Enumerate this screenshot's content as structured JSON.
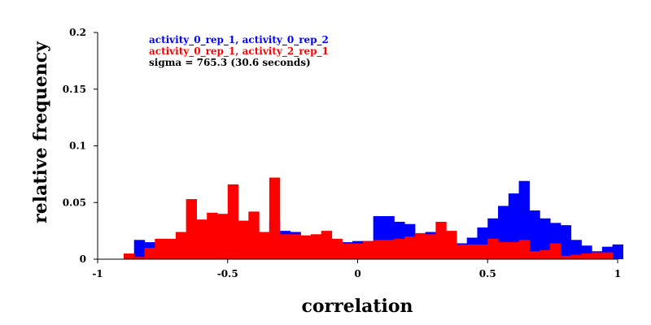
{
  "chart_data": {
    "type": "bar",
    "title": "",
    "xlabel": "correlation",
    "ylabel": "relative frequency",
    "xlim": [
      -1,
      1
    ],
    "ylim": [
      0,
      0.2
    ],
    "xticks": [
      {
        "value": -1,
        "label": "-1"
      },
      {
        "value": -0.5,
        "label": "-0.5"
      },
      {
        "value": 0,
        "label": "0"
      },
      {
        "value": 0.5,
        "label": "0.5"
      },
      {
        "value": 1,
        "label": "1"
      }
    ],
    "yticks": [
      {
        "value": 0,
        "label": "0"
      },
      {
        "value": 0.05,
        "label": "0.05"
      },
      {
        "value": 0.1,
        "label": "0.1"
      },
      {
        "value": 0.15,
        "label": "0.15"
      },
      {
        "value": 0.2,
        "label": "0.2"
      }
    ],
    "grid": false,
    "bin_width": 0.04,
    "annotation": "sigma = 765.3 (30.6 seconds)",
    "series": [
      {
        "name": "activity_0_rep_1, activity_0_rep_2",
        "color": "#0000ff",
        "bins": [
          {
            "x0": -0.86,
            "y": 0.017
          },
          {
            "x0": -0.82,
            "y": 0.015
          },
          {
            "x0": -0.78,
            "y": 0.012
          },
          {
            "x0": -0.74,
            "y": 0.01
          },
          {
            "x0": -0.7,
            "y": 0.008
          },
          {
            "x0": -0.66,
            "y": 0.013
          },
          {
            "x0": -0.62,
            "y": 0.012
          },
          {
            "x0": -0.58,
            "y": 0.013
          },
          {
            "x0": -0.54,
            "y": 0.011
          },
          {
            "x0": -0.5,
            "y": 0.012
          },
          {
            "x0": -0.46,
            "y": 0.01
          },
          {
            "x0": -0.42,
            "y": 0.012
          },
          {
            "x0": -0.38,
            "y": 0.019
          },
          {
            "x0": -0.34,
            "y": 0.034
          },
          {
            "x0": -0.3,
            "y": 0.025
          },
          {
            "x0": -0.26,
            "y": 0.024
          },
          {
            "x0": -0.22,
            "y": 0.018
          },
          {
            "x0": -0.18,
            "y": 0.017
          },
          {
            "x0": -0.14,
            "y": 0.017
          },
          {
            "x0": -0.1,
            "y": 0.015
          },
          {
            "x0": -0.06,
            "y": 0.015
          },
          {
            "x0": -0.02,
            "y": 0.016
          },
          {
            "x0": 0.02,
            "y": 0.016
          },
          {
            "x0": 0.06,
            "y": 0.038
          },
          {
            "x0": 0.1,
            "y": 0.038
          },
          {
            "x0": 0.14,
            "y": 0.033
          },
          {
            "x0": 0.18,
            "y": 0.031
          },
          {
            "x0": 0.22,
            "y": 0.022
          },
          {
            "x0": 0.26,
            "y": 0.024
          },
          {
            "x0": 0.3,
            "y": 0.022
          },
          {
            "x0": 0.34,
            "y": 0.02
          },
          {
            "x0": 0.38,
            "y": 0.014
          },
          {
            "x0": 0.42,
            "y": 0.019
          },
          {
            "x0": 0.46,
            "y": 0.028
          },
          {
            "x0": 0.5,
            "y": 0.036
          },
          {
            "x0": 0.54,
            "y": 0.047
          },
          {
            "x0": 0.58,
            "y": 0.058
          },
          {
            "x0": 0.62,
            "y": 0.069
          },
          {
            "x0": 0.66,
            "y": 0.043
          },
          {
            "x0": 0.7,
            "y": 0.036
          },
          {
            "x0": 0.74,
            "y": 0.032
          },
          {
            "x0": 0.78,
            "y": 0.03
          },
          {
            "x0": 0.82,
            "y": 0.017
          },
          {
            "x0": 0.86,
            "y": 0.012
          },
          {
            "x0": 0.9,
            "y": 0.007
          },
          {
            "x0": 0.94,
            "y": 0.011
          },
          {
            "x0": 0.98,
            "y": 0.013
          }
        ]
      },
      {
        "name": "activity_0_rep_1, activity_2_rep_1",
        "color": "#ff0000",
        "bins": [
          {
            "x0": -0.9,
            "y": 0.005
          },
          {
            "x0": -0.86,
            "y": 0.002
          },
          {
            "x0": -0.82,
            "y": 0.01
          },
          {
            "x0": -0.78,
            "y": 0.018
          },
          {
            "x0": -0.74,
            "y": 0.018
          },
          {
            "x0": -0.7,
            "y": 0.024
          },
          {
            "x0": -0.66,
            "y": 0.053
          },
          {
            "x0": -0.62,
            "y": 0.035
          },
          {
            "x0": -0.58,
            "y": 0.041
          },
          {
            "x0": -0.54,
            "y": 0.04
          },
          {
            "x0": -0.5,
            "y": 0.066
          },
          {
            "x0": -0.46,
            "y": 0.034
          },
          {
            "x0": -0.42,
            "y": 0.042
          },
          {
            "x0": -0.38,
            "y": 0.024
          },
          {
            "x0": -0.34,
            "y": 0.072
          },
          {
            "x0": -0.3,
            "y": 0.022
          },
          {
            "x0": -0.26,
            "y": 0.022
          },
          {
            "x0": -0.22,
            "y": 0.021
          },
          {
            "x0": -0.18,
            "y": 0.022
          },
          {
            "x0": -0.14,
            "y": 0.025
          },
          {
            "x0": -0.1,
            "y": 0.018
          },
          {
            "x0": -0.06,
            "y": 0.014
          },
          {
            "x0": -0.02,
            "y": 0.014
          },
          {
            "x0": 0.02,
            "y": 0.016
          },
          {
            "x0": 0.06,
            "y": 0.017
          },
          {
            "x0": 0.1,
            "y": 0.017
          },
          {
            "x0": 0.14,
            "y": 0.018
          },
          {
            "x0": 0.18,
            "y": 0.02
          },
          {
            "x0": 0.22,
            "y": 0.023
          },
          {
            "x0": 0.26,
            "y": 0.022
          },
          {
            "x0": 0.3,
            "y": 0.033
          },
          {
            "x0": 0.34,
            "y": 0.025
          },
          {
            "x0": 0.38,
            "y": 0.013
          },
          {
            "x0": 0.42,
            "y": 0.013
          },
          {
            "x0": 0.46,
            "y": 0.013
          },
          {
            "x0": 0.5,
            "y": 0.018
          },
          {
            "x0": 0.54,
            "y": 0.015
          },
          {
            "x0": 0.58,
            "y": 0.015
          },
          {
            "x0": 0.62,
            "y": 0.017
          },
          {
            "x0": 0.66,
            "y": 0.007
          },
          {
            "x0": 0.7,
            "y": 0.008
          },
          {
            "x0": 0.74,
            "y": 0.014
          },
          {
            "x0": 0.78,
            "y": 0.003
          },
          {
            "x0": 0.82,
            "y": 0.004
          },
          {
            "x0": 0.86,
            "y": 0.005
          },
          {
            "x0": 0.9,
            "y": 0.006
          },
          {
            "x0": 0.94,
            "y": 0.006
          }
        ]
      }
    ]
  }
}
